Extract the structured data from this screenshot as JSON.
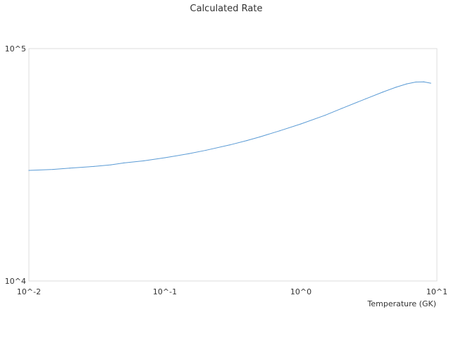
{
  "chart_data": {
    "type": "line",
    "title": "Calculated Rate",
    "xlabel": "Temperature (GK)",
    "ylabel": "",
    "x_scale": "log",
    "y_scale": "log",
    "xlim": [
      0.01,
      10
    ],
    "ylim": [
      10000,
      100000
    ],
    "grid": false,
    "x_ticks": [
      {
        "value": 0.01,
        "label": "10^-2"
      },
      {
        "value": 0.1,
        "label": "10^-1"
      },
      {
        "value": 1,
        "label": "10^0"
      },
      {
        "value": 10,
        "label": "10^1"
      }
    ],
    "y_ticks": [
      {
        "value": 10000,
        "label": "10^4"
      },
      {
        "value": 100000,
        "label": "10^5"
      }
    ],
    "series": [
      {
        "name": "",
        "color": "#5b9bd5",
        "x": [
          0.01,
          0.015,
          0.02,
          0.03,
          0.04,
          0.05,
          0.07,
          0.1,
          0.15,
          0.2,
          0.3,
          0.4,
          0.5,
          0.7,
          1.0,
          1.5,
          2.0,
          3.0,
          4.0,
          5.0,
          6.0,
          7.0,
          8.0,
          9.0
        ],
        "y": [
          29900,
          30200,
          30600,
          31100,
          31600,
          32200,
          32900,
          33900,
          35300,
          36500,
          38500,
          40200,
          41700,
          44300,
          47400,
          51600,
          55300,
          60800,
          65000,
          68200,
          70500,
          71800,
          71900,
          71000
        ]
      }
    ]
  }
}
